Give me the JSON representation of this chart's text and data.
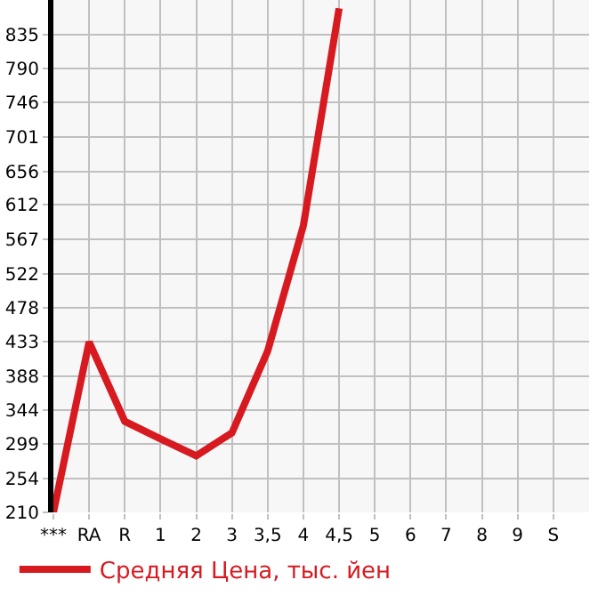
{
  "chart_data": {
    "type": "line",
    "categories": [
      "***",
      "RA",
      "R",
      "1",
      "2",
      "3",
      "3,5",
      "4",
      "4,5",
      "5",
      "6",
      "7",
      "8",
      "9",
      "S",
      null
    ],
    "series": [
      {
        "name": "Средняя Цена, тыс. йен",
        "color": "#d71920",
        "values": [
          210,
          433,
          329,
          306,
          284,
          314,
          421,
          585,
          869,
          null,
          null,
          null,
          null,
          null,
          null,
          null
        ]
      }
    ],
    "ylim": [
      210,
      880
    ],
    "yticks": [
      210,
      254,
      299,
      344,
      388,
      433,
      478,
      522,
      567,
      612,
      656,
      701,
      746,
      790,
      835
    ],
    "grid": true,
    "legend": "bottom",
    "marker": "none",
    "line_style": "solid"
  }
}
